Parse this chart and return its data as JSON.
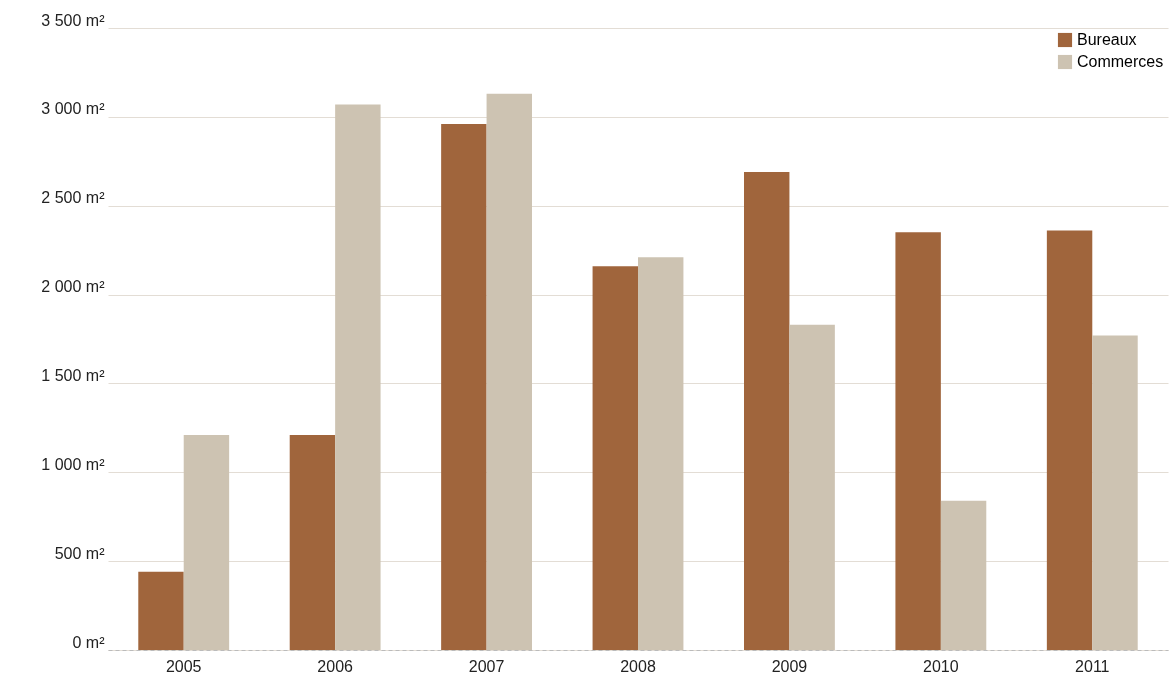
{
  "chart_data": {
    "type": "bar",
    "categories": [
      "2005",
      "2006",
      "2007",
      "2008",
      "2009",
      "2010",
      "2011"
    ],
    "series": [
      {
        "name": "Bureaux",
        "color": "#a0653c",
        "values": [
          440,
          1210,
          2960,
          2160,
          2690,
          2350,
          2360
        ]
      },
      {
        "name": "Commerces",
        "color": "#cdc3b2",
        "values": [
          1210,
          3070,
          3130,
          2210,
          1830,
          840,
          1770
        ]
      }
    ],
    "ylim": [
      0,
      3500
    ],
    "yticks": [
      {
        "value": 0,
        "label": "0 m²"
      },
      {
        "value": 500,
        "label": "500 m²"
      },
      {
        "value": 1000,
        "label": "1 000 m²"
      },
      {
        "value": 1500,
        "label": "1 500 m²"
      },
      {
        "value": 2000,
        "label": "2 000 m²"
      },
      {
        "value": 2500,
        "label": "2 500 m²"
      },
      {
        "value": 3000,
        "label": "3 000 m²"
      },
      {
        "value": 3500,
        "label": "3 500 m²"
      }
    ],
    "grid": "y",
    "legend": "top right"
  }
}
